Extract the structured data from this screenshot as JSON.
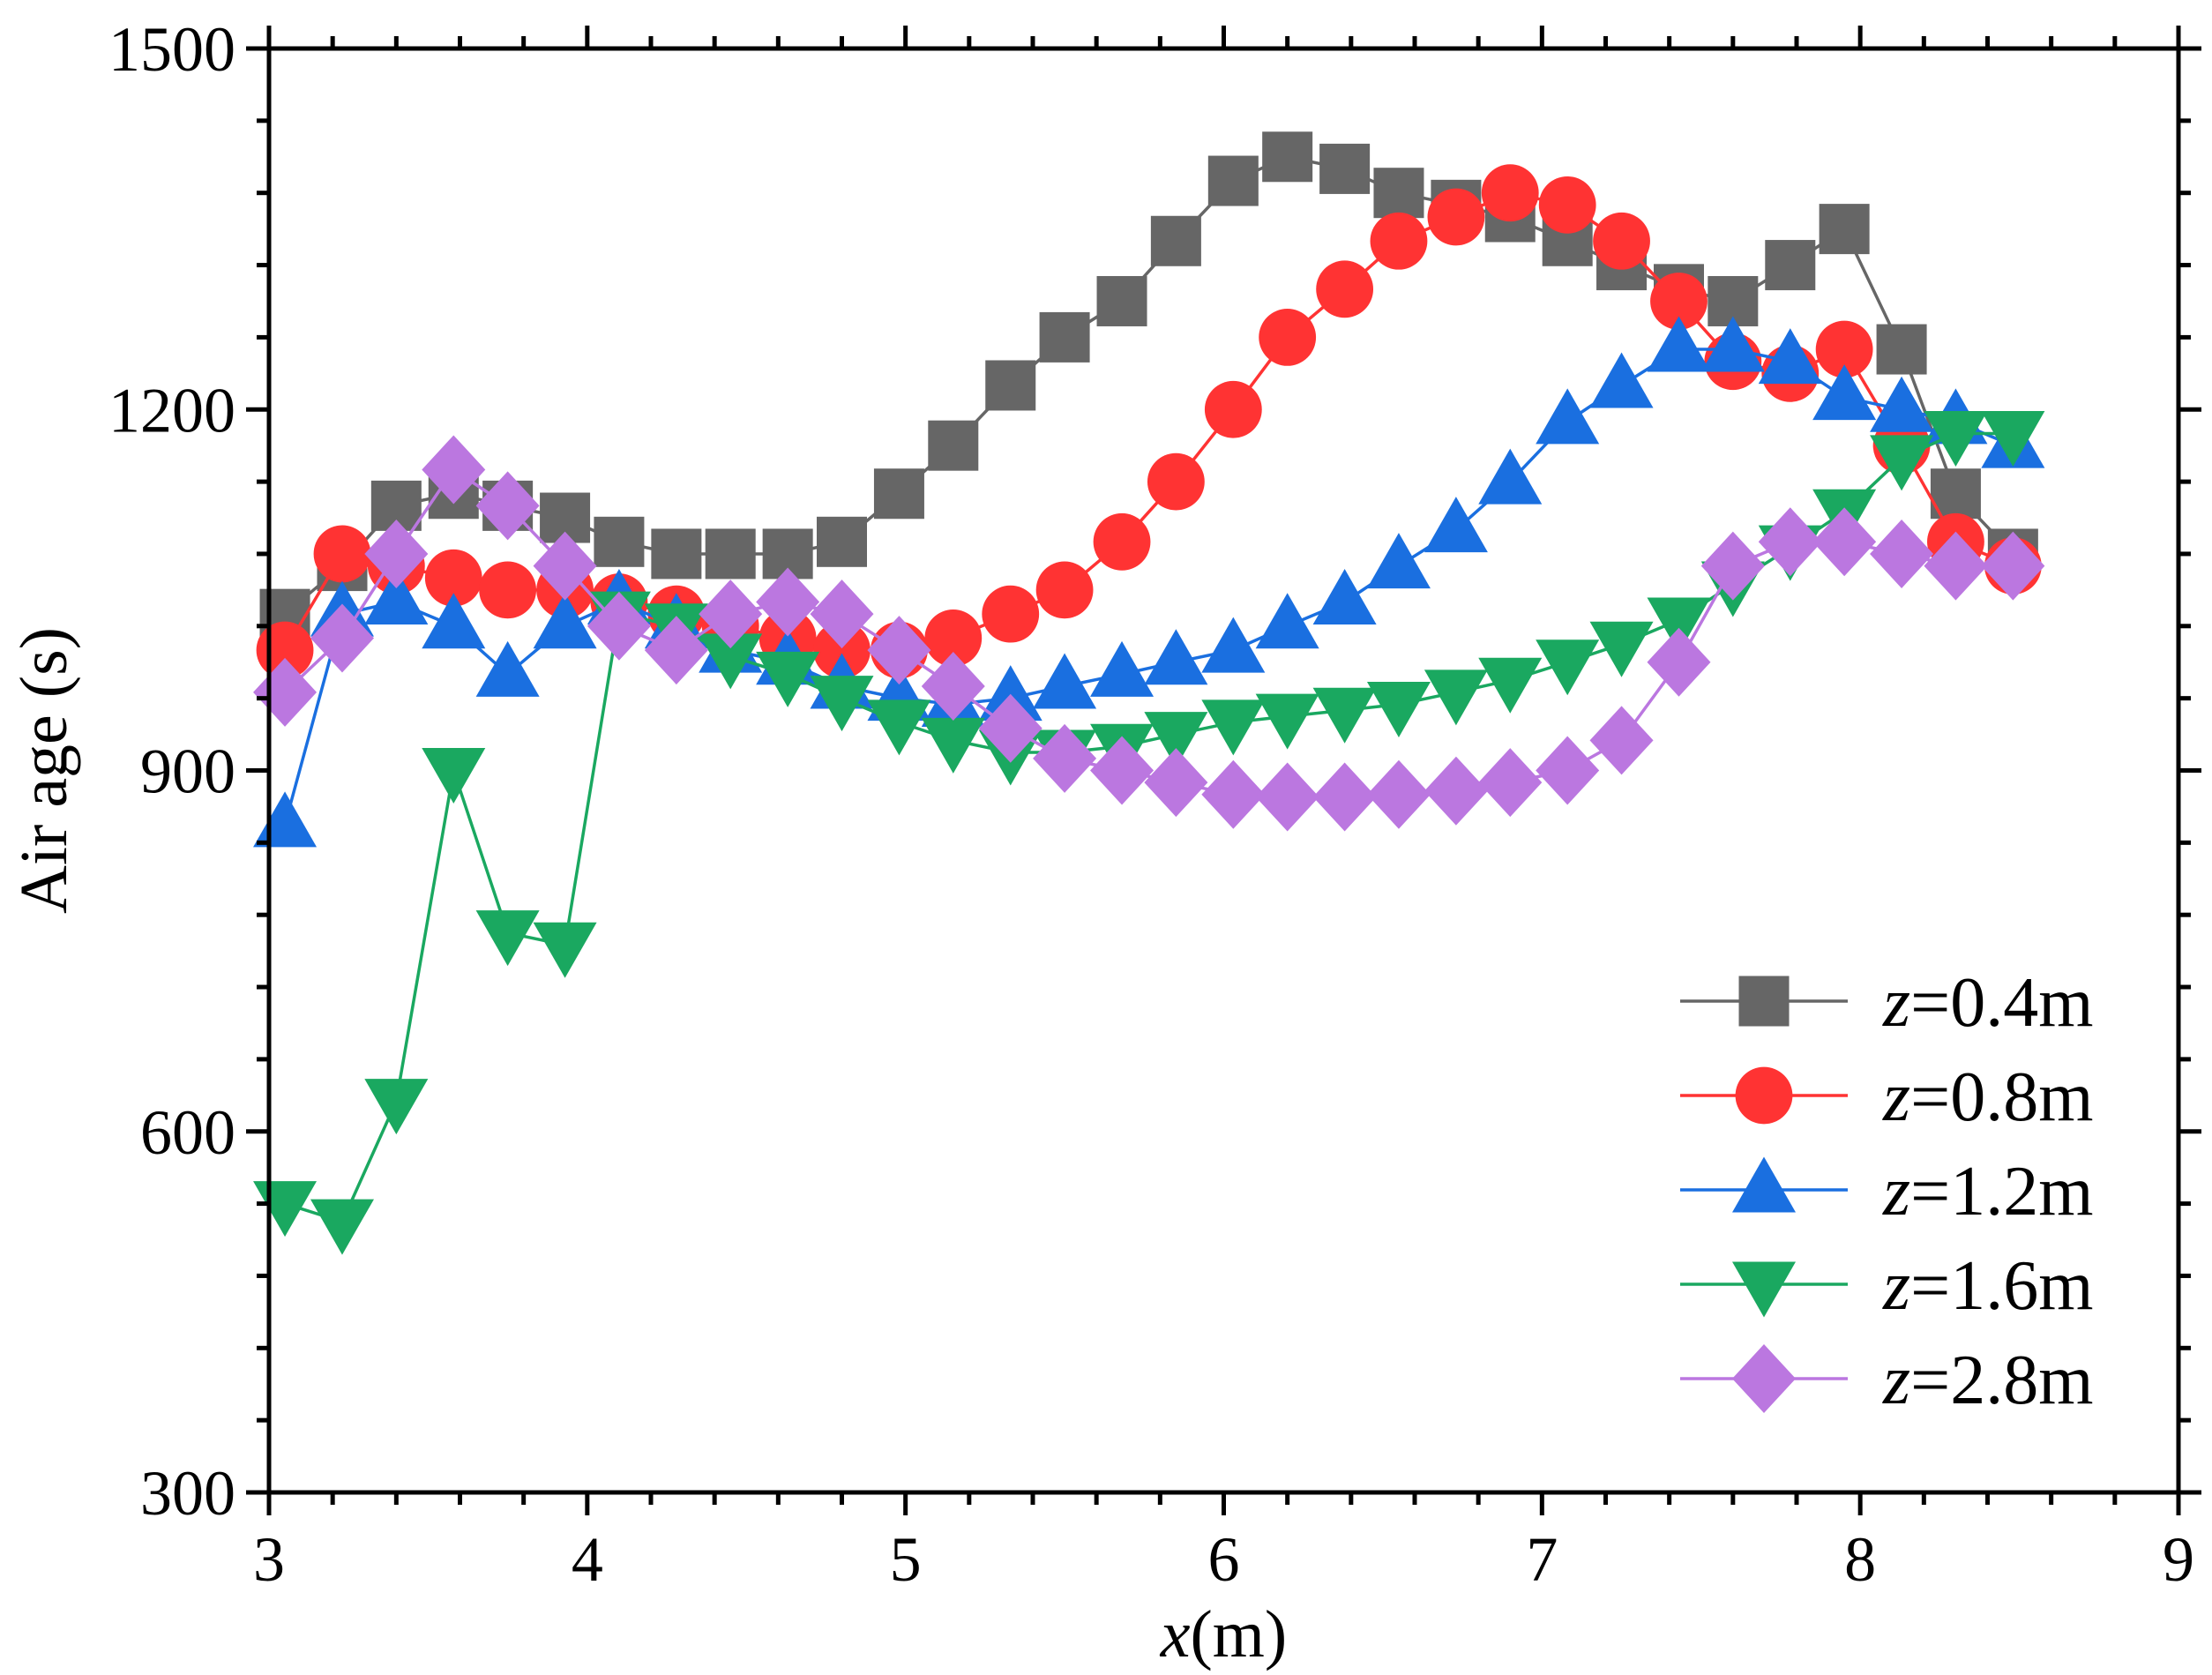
{
  "chart_data": {
    "type": "line",
    "title": "",
    "xlabel": {
      "italic": "x",
      "rest": "(m)"
    },
    "ylabel": "Air age (s)",
    "xlim": [
      3,
      9
    ],
    "ylim": [
      300,
      1500
    ],
    "xticks": [
      "3",
      "4",
      "5",
      "6",
      "7",
      "8",
      "9"
    ],
    "yticks": [
      "300",
      "600",
      "900",
      "1200",
      "1500"
    ],
    "legend_position": "bottom-right",
    "series": [
      {
        "name": "z=0.4m",
        "name_italic": "z",
        "name_rest": "=0.4m",
        "color": "#666666",
        "marker": "square",
        "x": [
          3.05,
          3.23,
          3.4,
          3.58,
          3.75,
          3.93,
          4.1,
          4.28,
          4.45,
          4.63,
          4.8,
          4.98,
          5.15,
          5.33,
          5.5,
          5.68,
          5.85,
          6.03,
          6.2,
          6.38,
          6.55,
          6.73,
          6.9,
          7.08,
          7.25,
          7.43,
          7.6,
          7.78,
          7.95,
          8.13,
          8.3,
          8.48
        ],
        "values": [
          1030,
          1070,
          1120,
          1130,
          1120,
          1110,
          1090,
          1080,
          1080,
          1080,
          1090,
          1130,
          1170,
          1220,
          1260,
          1290,
          1340,
          1390,
          1410,
          1400,
          1380,
          1370,
          1360,
          1340,
          1320,
          1300,
          1290,
          1320,
          1350,
          1250,
          1130,
          1080
        ]
      },
      {
        "name": "z=0.8m",
        "name_italic": "z",
        "name_rest": "=0.8m",
        "color": "#ff3333",
        "marker": "circle",
        "x": [
          3.05,
          3.23,
          3.4,
          3.58,
          3.75,
          3.93,
          4.1,
          4.28,
          4.45,
          4.63,
          4.8,
          4.98,
          5.15,
          5.33,
          5.5,
          5.68,
          5.85,
          6.03,
          6.2,
          6.38,
          6.55,
          6.73,
          6.9,
          7.08,
          7.25,
          7.43,
          7.6,
          7.78,
          7.95,
          8.13,
          8.3,
          8.48
        ],
        "values": [
          1000,
          1080,
          1070,
          1060,
          1050,
          1050,
          1040,
          1030,
          1020,
          1010,
          1000,
          1000,
          1010,
          1030,
          1050,
          1090,
          1140,
          1200,
          1260,
          1300,
          1340,
          1360,
          1380,
          1370,
          1340,
          1290,
          1240,
          1230,
          1250,
          1170,
          1090,
          1070
        ]
      },
      {
        "name": "z=1.2m",
        "name_italic": "z",
        "name_rest": "=1.2m",
        "color": "#1a6fe0",
        "marker": "triangle-up",
        "x": [
          3.05,
          3.23,
          3.4,
          3.58,
          3.75,
          3.93,
          4.1,
          4.28,
          4.45,
          4.63,
          4.8,
          4.98,
          5.15,
          5.33,
          5.5,
          5.68,
          5.85,
          6.03,
          6.2,
          6.38,
          6.55,
          6.73,
          6.9,
          7.08,
          7.25,
          7.43,
          7.6,
          7.78,
          7.95,
          8.13,
          8.3,
          8.48
        ],
        "values": [
          855,
          1030,
          1040,
          1020,
          980,
          1020,
          1040,
          1020,
          1000,
          990,
          970,
          960,
          955,
          960,
          970,
          980,
          990,
          1000,
          1020,
          1040,
          1070,
          1100,
          1140,
          1190,
          1220,
          1250,
          1250,
          1240,
          1210,
          1200,
          1190,
          1170
        ]
      },
      {
        "name": "z=1.6m",
        "name_italic": "z",
        "name_rest": "=1.6m",
        "color": "#1aa860",
        "marker": "triangle-down",
        "x": [
          3.05,
          3.23,
          3.4,
          3.58,
          3.75,
          3.93,
          4.1,
          4.28,
          4.45,
          4.63,
          4.8,
          4.98,
          5.15,
          5.33,
          5.5,
          5.68,
          5.85,
          6.03,
          6.2,
          6.38,
          6.55,
          6.73,
          6.9,
          7.08,
          7.25,
          7.43,
          7.6,
          7.78,
          7.95,
          8.13,
          8.3,
          8.48
        ],
        "values": [
          540,
          525,
          625,
          900,
          765,
          755,
          1030,
          1020,
          995,
          980,
          960,
          940,
          925,
          915,
          915,
          920,
          930,
          940,
          945,
          950,
          955,
          965,
          975,
          990,
          1005,
          1025,
          1055,
          1085,
          1115,
          1160,
          1180,
          1180
        ]
      },
      {
        "name": "z=2.8m",
        "name_italic": "z",
        "name_rest": "=2.8m",
        "color": "#bb77e0",
        "marker": "diamond",
        "x": [
          3.05,
          3.23,
          3.4,
          3.58,
          3.75,
          3.93,
          4.1,
          4.28,
          4.45,
          4.63,
          4.8,
          4.98,
          5.15,
          5.33,
          5.5,
          5.68,
          5.85,
          6.03,
          6.2,
          6.38,
          6.55,
          6.73,
          6.9,
          7.08,
          7.25,
          7.43,
          7.6,
          7.78,
          7.95,
          8.13,
          8.3,
          8.48
        ],
        "values": [
          965,
          1010,
          1080,
          1150,
          1120,
          1070,
          1020,
          1000,
          1030,
          1040,
          1030,
          1000,
          970,
          935,
          910,
          900,
          890,
          880,
          878,
          878,
          880,
          883,
          890,
          900,
          925,
          990,
          1070,
          1090,
          1090,
          1080,
          1070,
          1070
        ]
      }
    ]
  }
}
